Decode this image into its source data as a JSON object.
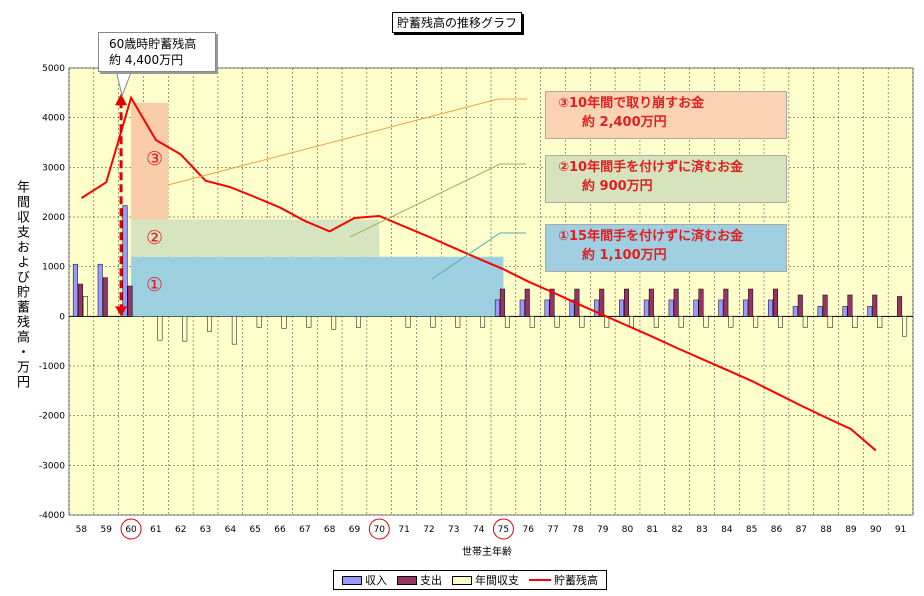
{
  "chart_data": {
    "type": "bar+line",
    "title": "貯蓄残高の推移グラフ",
    "xlabel": "世帯主年齢",
    "ylabel": "年間収支および貯蓄残高・万円",
    "ylim": [
      -4000,
      5000
    ],
    "yticks": [
      5000,
      4000,
      3000,
      2000,
      1000,
      0,
      -1000,
      -2000,
      -3000,
      -4000
    ],
    "grid": true,
    "legend_position": "bottom",
    "categories": [
      "58",
      "59",
      "60",
      "61",
      "62",
      "63",
      "64",
      "65",
      "66",
      "67",
      "68",
      "69",
      "70",
      "71",
      "72",
      "73",
      "74",
      "75",
      "76",
      "77",
      "78",
      "79",
      "80",
      "81",
      "82",
      "83",
      "84",
      "85",
      "86",
      "87",
      "88",
      "89",
      "90",
      "91"
    ],
    "highlighted_categories": [
      "60",
      "70",
      "75"
    ],
    "series": [
      {
        "name": "収入",
        "kind": "bar",
        "color": "#9999ff",
        "values": [
          1050,
          1050,
          2230,
          null,
          null,
          null,
          null,
          null,
          null,
          null,
          null,
          null,
          null,
          null,
          null,
          null,
          null,
          330,
          330,
          330,
          330,
          330,
          330,
          330,
          330,
          330,
          330,
          330,
          330,
          200,
          200,
          200,
          200,
          null
        ]
      },
      {
        "name": "支出",
        "kind": "bar",
        "color": "#993366",
        "values": [
          650,
          780,
          610,
          null,
          null,
          null,
          null,
          null,
          null,
          null,
          null,
          null,
          null,
          null,
          null,
          null,
          null,
          550,
          550,
          550,
          550,
          550,
          550,
          550,
          550,
          550,
          550,
          550,
          550,
          430,
          430,
          430,
          430,
          400
        ]
      },
      {
        "name": "年間収支",
        "kind": "bar",
        "color": "#ffffcc",
        "values": [
          400,
          null,
          null,
          -480,
          -500,
          -300,
          -560,
          -220,
          -240,
          -220,
          -260,
          -220,
          null,
          -220,
          -220,
          -220,
          -220,
          -220,
          -220,
          -220,
          -220,
          -220,
          -220,
          -220,
          -220,
          -220,
          -220,
          -220,
          -220,
          -220,
          -230,
          -230,
          -230,
          -400
        ]
      },
      {
        "name": "貯蓄残高",
        "kind": "line",
        "color": "#ff0000",
        "values": [
          2380,
          2700,
          4400,
          3550,
          3260,
          2730,
          2600,
          2400,
          2190,
          1920,
          1710,
          1980,
          2020,
          1810,
          1600,
          1380,
          1160,
          950,
          700,
          480,
          250,
          30,
          -190,
          -410,
          -640,
          -860,
          -1080,
          -1300,
          -1550,
          -1800,
          -2040,
          -2270,
          -2700,
          null
        ]
      }
    ],
    "callout": {
      "line1": "60歳時貯蓄残高",
      "line2": "約 4,400万円"
    },
    "bands": [
      {
        "label": "①",
        "from_age": 60,
        "to_age": 75,
        "y0": 0,
        "y1": 1200,
        "color": "#9ccfe0"
      },
      {
        "label": "②",
        "from_age": 60,
        "to_age": 70,
        "y0": 1200,
        "y1": 1950,
        "color": "#d6e5bf"
      },
      {
        "label": "③",
        "from_age": 60,
        "to_age": 61.5,
        "y0": 1950,
        "y1": 4300,
        "color": "#f9ccaa"
      }
    ],
    "annotations": [
      {
        "line1": "③10年間で取り崩すお金",
        "line2": "約 2,400万円",
        "color": "#fad3b5"
      },
      {
        "line1": "②10年間手を付けずに済むお金",
        "line2": "約 900万円",
        "color": "#d6e3bd"
      },
      {
        "line1": "①15年間手を付けずに済むお金",
        "line2": "約 1,100万円",
        "color": "#9fcfe1"
      }
    ]
  }
}
